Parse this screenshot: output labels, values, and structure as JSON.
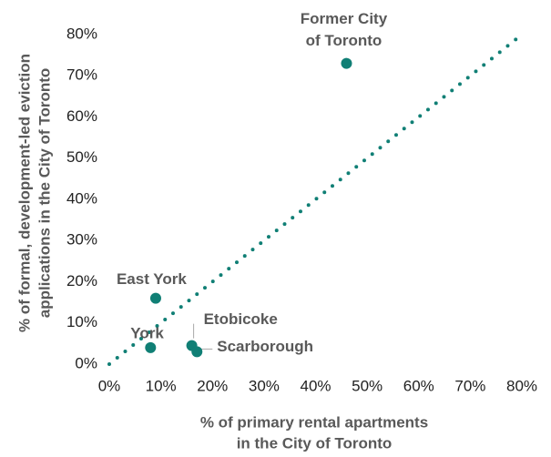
{
  "chart_data": {
    "type": "scatter",
    "x": [
      46,
      9,
      8,
      16,
      17
    ],
    "values": [
      73,
      16,
      4,
      4.5,
      3
    ],
    "labels": [
      [
        "Former City",
        "of Toronto"
      ],
      [
        "East York"
      ],
      [
        "York"
      ],
      [
        "Etobicoke"
      ],
      [
        "Scarborough"
      ]
    ],
    "color": "#107f75",
    "identity_line": true,
    "xlim": [
      0,
      80
    ],
    "ylim": [
      0,
      80
    ],
    "xticks": [
      {
        "value": 0,
        "label": "0%"
      },
      {
        "value": 10,
        "label": "10%"
      },
      {
        "value": 20,
        "label": "20%"
      },
      {
        "value": 30,
        "label": "30%"
      },
      {
        "value": 40,
        "label": "40%"
      },
      {
        "value": 50,
        "label": "50%"
      },
      {
        "value": 60,
        "label": "60%"
      },
      {
        "value": 70,
        "label": "70%"
      },
      {
        "value": 80,
        "label": "80%"
      }
    ],
    "yticks": [
      {
        "value": 0,
        "label": "0%"
      },
      {
        "value": 10,
        "label": "10%"
      },
      {
        "value": 20,
        "label": "20%"
      },
      {
        "value": 30,
        "label": "30%"
      },
      {
        "value": 40,
        "label": "40%"
      },
      {
        "value": 50,
        "label": "50%"
      },
      {
        "value": 60,
        "label": "60%"
      },
      {
        "value": 70,
        "label": "70%"
      },
      {
        "value": 80,
        "label": "80%"
      }
    ],
    "xlabel": [
      "% of primary rental apartments",
      "in the City of Toronto"
    ],
    "ylabel": [
      "% of formal, development-led eviction",
      "applications in the City of Toronto"
    ]
  }
}
